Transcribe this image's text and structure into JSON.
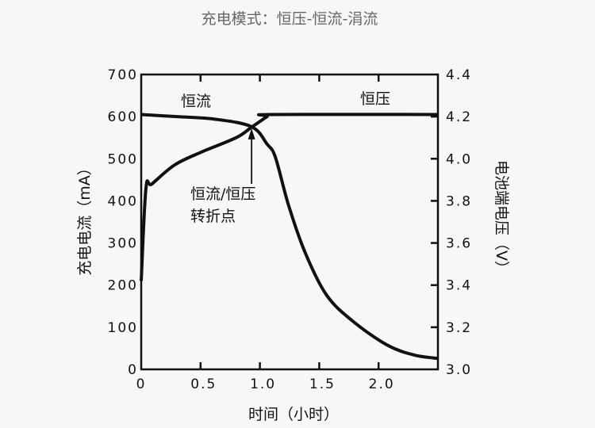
{
  "chart_data": {
    "type": "line",
    "title": "充电模式：恒压-恒流-涓流",
    "xlabel": "时间（小时）",
    "ylabel": "充电电流（mA）",
    "y2label": "电池端电压（V）",
    "xlim": [
      0,
      2.5
    ],
    "ylim": [
      0,
      700
    ],
    "y2lim": [
      3.0,
      4.4
    ],
    "grid": false,
    "xticks": [
      "0",
      "0.5",
      "1.0",
      "1.5",
      "2.0"
    ],
    "xtick_values": [
      0,
      0.5,
      1.0,
      1.5,
      2.0
    ],
    "yticks": [
      "0",
      "100",
      "200",
      "300",
      "400",
      "500",
      "600",
      "700"
    ],
    "ytick_values": [
      0,
      100,
      200,
      300,
      400,
      500,
      600,
      700
    ],
    "y2ticks": [
      "3.0",
      "3.2",
      "3.4",
      "3.6",
      "3.8",
      "4.0",
      "4.2",
      "4.4"
    ],
    "y2tick_values": [
      3.0,
      3.2,
      3.4,
      3.6,
      3.8,
      4.0,
      4.2,
      4.4
    ],
    "series": [
      {
        "name": "充电电流",
        "axis": "left",
        "x": [
          0,
          0.3,
          0.62,
          0.93,
          1.06,
          1.13,
          1.24,
          1.38,
          1.56,
          1.78,
          2.07,
          2.3,
          2.5
        ],
        "y": [
          605,
          600,
          594,
          576,
          535,
          504,
          391,
          278,
          177,
          115,
          58,
          34,
          26
        ]
      },
      {
        "name": "电池端电压",
        "axis": "right",
        "x": [
          0,
          0.04,
          0.09,
          0.28,
          0.5,
          0.8,
          0.93,
          1.06,
          1.1,
          2.5
        ],
        "y": [
          3.42,
          3.86,
          3.88,
          3.97,
          4.03,
          4.1,
          4.15,
          4.2,
          4.21,
          4.21
        ]
      }
    ],
    "annotations": {
      "cc_label": "恒流",
      "cv_label": "恒压",
      "transition_line1": "恒流/恒压",
      "transition_line2": "转折点",
      "transition_point": {
        "x": 0.93,
        "y": 576
      }
    }
  }
}
